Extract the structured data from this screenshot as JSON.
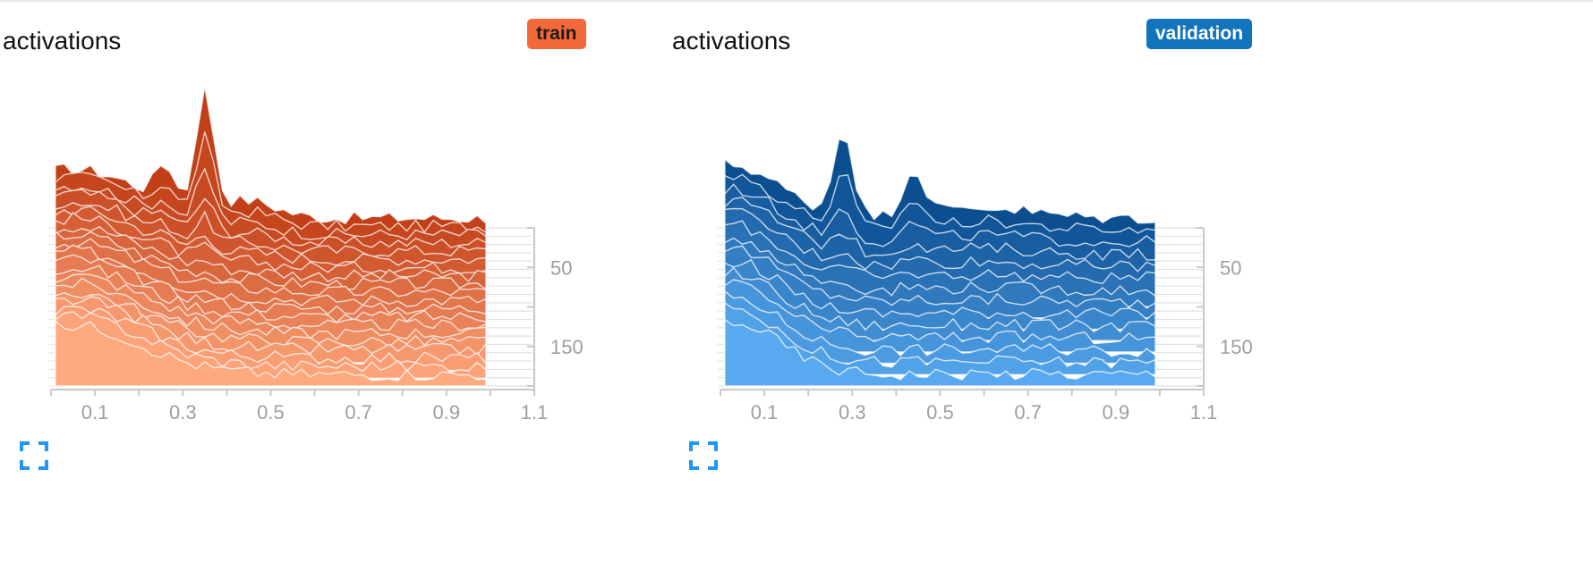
{
  "header": {},
  "cards": [
    {
      "title": "activations",
      "run_tag": "train",
      "fullscreen_icon": "fullscreen-icon",
      "colors": {
        "top": "#c23f17",
        "bottom": "#ffa97e",
        "tag": "#f4693a"
      }
    },
    {
      "title": "activations",
      "run_tag": "validation",
      "fullscreen_icon": "fullscreen-icon",
      "colors": {
        "top": "#0b4f91",
        "bottom": "#58a9ef",
        "tag": "#1274bb"
      }
    }
  ],
  "chart_data": [
    {
      "type": "histogram_ridgeline",
      "run": "train",
      "title": "activations",
      "x_ticks": [
        "0.1",
        "0.3",
        "0.5",
        "0.7",
        "0.9",
        "1.1"
      ],
      "x_range": [
        0,
        1.1
      ],
      "y_ticks": [
        "50",
        "150"
      ],
      "y_range": [
        0,
        200
      ],
      "color_top": "#c23f17",
      "color_bottom": "#ffa97e",
      "num_steps": 20,
      "x_max_data": 0.99,
      "peaks": [
        {
          "x": 0.35,
          "width": 0.028,
          "amp": 130,
          "decay": 0.08
        },
        {
          "x": 0.26,
          "width": 0.03,
          "amp": 40,
          "decay": 0.08
        },
        {
          "x": 0.05,
          "width": 0.22,
          "amp": 55,
          "decay": 1
        },
        {
          "x": 0.45,
          "width": 0.09,
          "amp": 18,
          "decay": 0.25
        }
      ]
    },
    {
      "type": "histogram_ridgeline",
      "run": "validation",
      "title": "activations",
      "x_ticks": [
        "0.1",
        "0.3",
        "0.5",
        "0.7",
        "0.9",
        "1.1"
      ],
      "x_range": [
        0,
        1.1
      ],
      "y_ticks": [
        "50",
        "150"
      ],
      "y_range": [
        0,
        200
      ],
      "color_top": "#0b4f91",
      "color_bottom": "#58a9ef",
      "num_steps": 14,
      "x_max_data": 0.99,
      "peaks": [
        {
          "x": 0.28,
          "width": 0.03,
          "amp": 95,
          "decay": 0.12
        },
        {
          "x": 0.44,
          "width": 0.035,
          "amp": 50,
          "decay": 0.12
        },
        {
          "x": 0.02,
          "width": 0.16,
          "amp": 60,
          "decay": 1
        },
        {
          "x": 0.6,
          "width": 0.15,
          "amp": 12,
          "decay": 0.4
        }
      ]
    }
  ]
}
